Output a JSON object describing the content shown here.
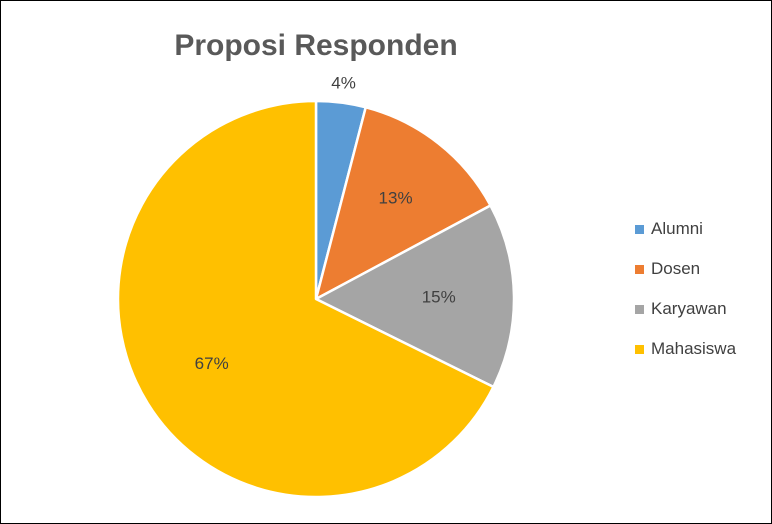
{
  "chart_data": {
    "type": "pie",
    "title": "Proposi Responden",
    "categories": [
      "Alumni",
      "Dosen",
      "Karyawan",
      "Mahasiswa"
    ],
    "values": [
      4,
      13,
      15,
      67
    ],
    "data_labels": [
      "4%",
      "13%",
      "15%",
      "67%"
    ],
    "colors": [
      "#5B9BD5",
      "#ED7D31",
      "#A5A5A5",
      "#FFC000"
    ],
    "legend_position": "right",
    "start_angle_deg": 0,
    "direction": "clockwise"
  }
}
